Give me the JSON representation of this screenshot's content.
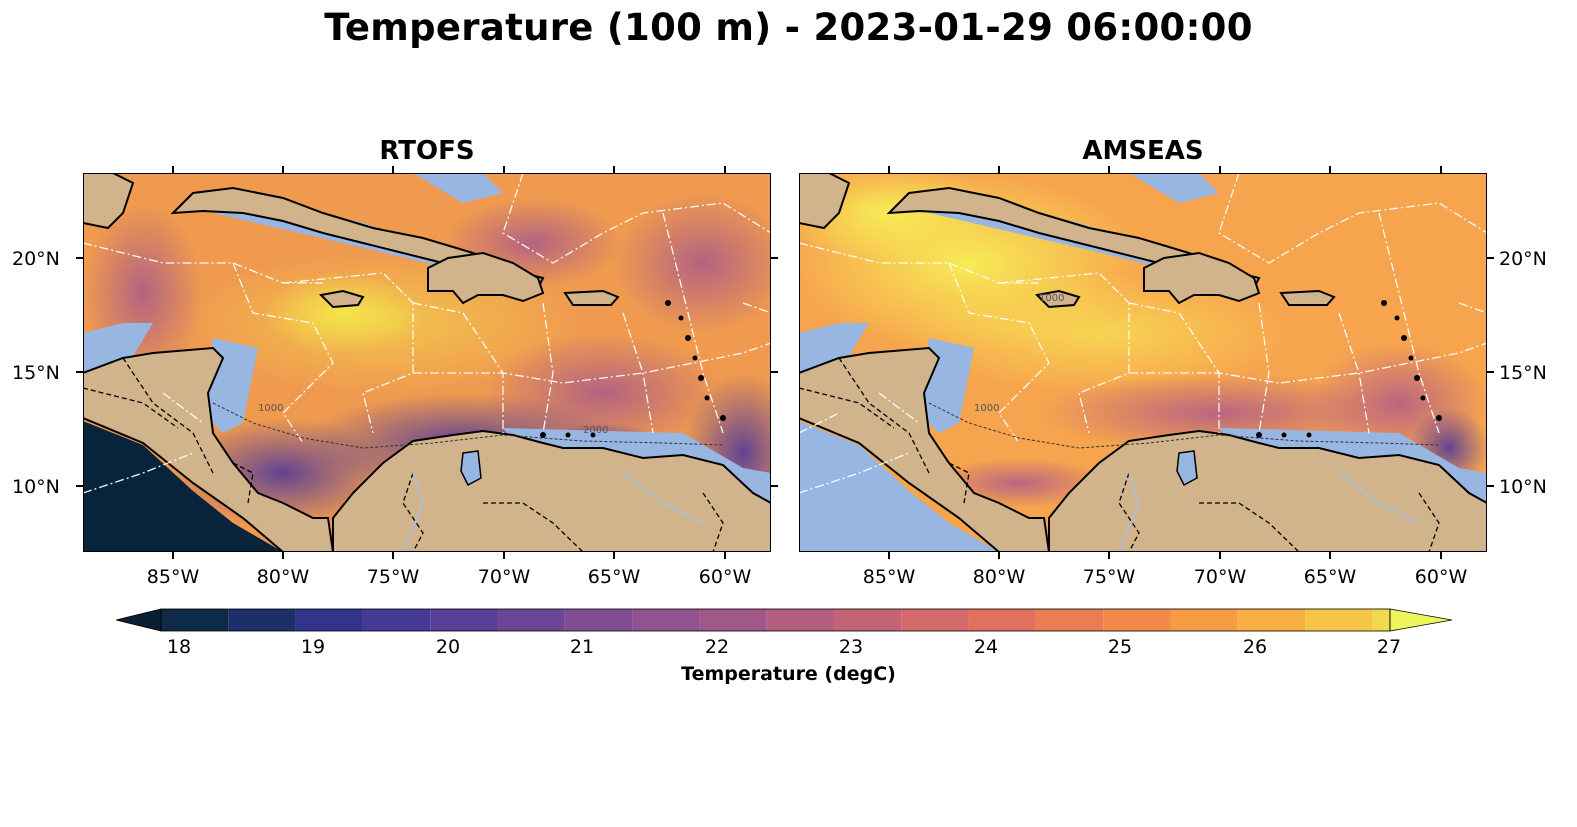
{
  "title": "Temperature (100 m) - 2023-01-29 06:00:00",
  "panels": [
    {
      "title": "RTOFS"
    },
    {
      "title": "AMSEAS"
    }
  ],
  "axes": {
    "lat_ticks": [
      "20°N",
      "15°N",
      "10°N"
    ],
    "lon_ticks": [
      "85°W",
      "80°W",
      "75°W",
      "70°W",
      "65°W",
      "60°W"
    ]
  },
  "colorbar": {
    "label": "Temperature (degC)",
    "ticks": [
      "18",
      "19",
      "20",
      "21",
      "22",
      "23",
      "24",
      "25",
      "26",
      "27"
    ],
    "range": [
      18,
      27
    ],
    "extend": "both"
  },
  "colors": {
    "land": "#d2b48c",
    "shallow_water": "#97b6e1",
    "deep_cold": "#07243a",
    "warm": "#f7a44e",
    "hot": "#f4e94a"
  },
  "contour_labels": [
    "1000",
    "1000",
    "1000",
    "2000"
  ]
}
